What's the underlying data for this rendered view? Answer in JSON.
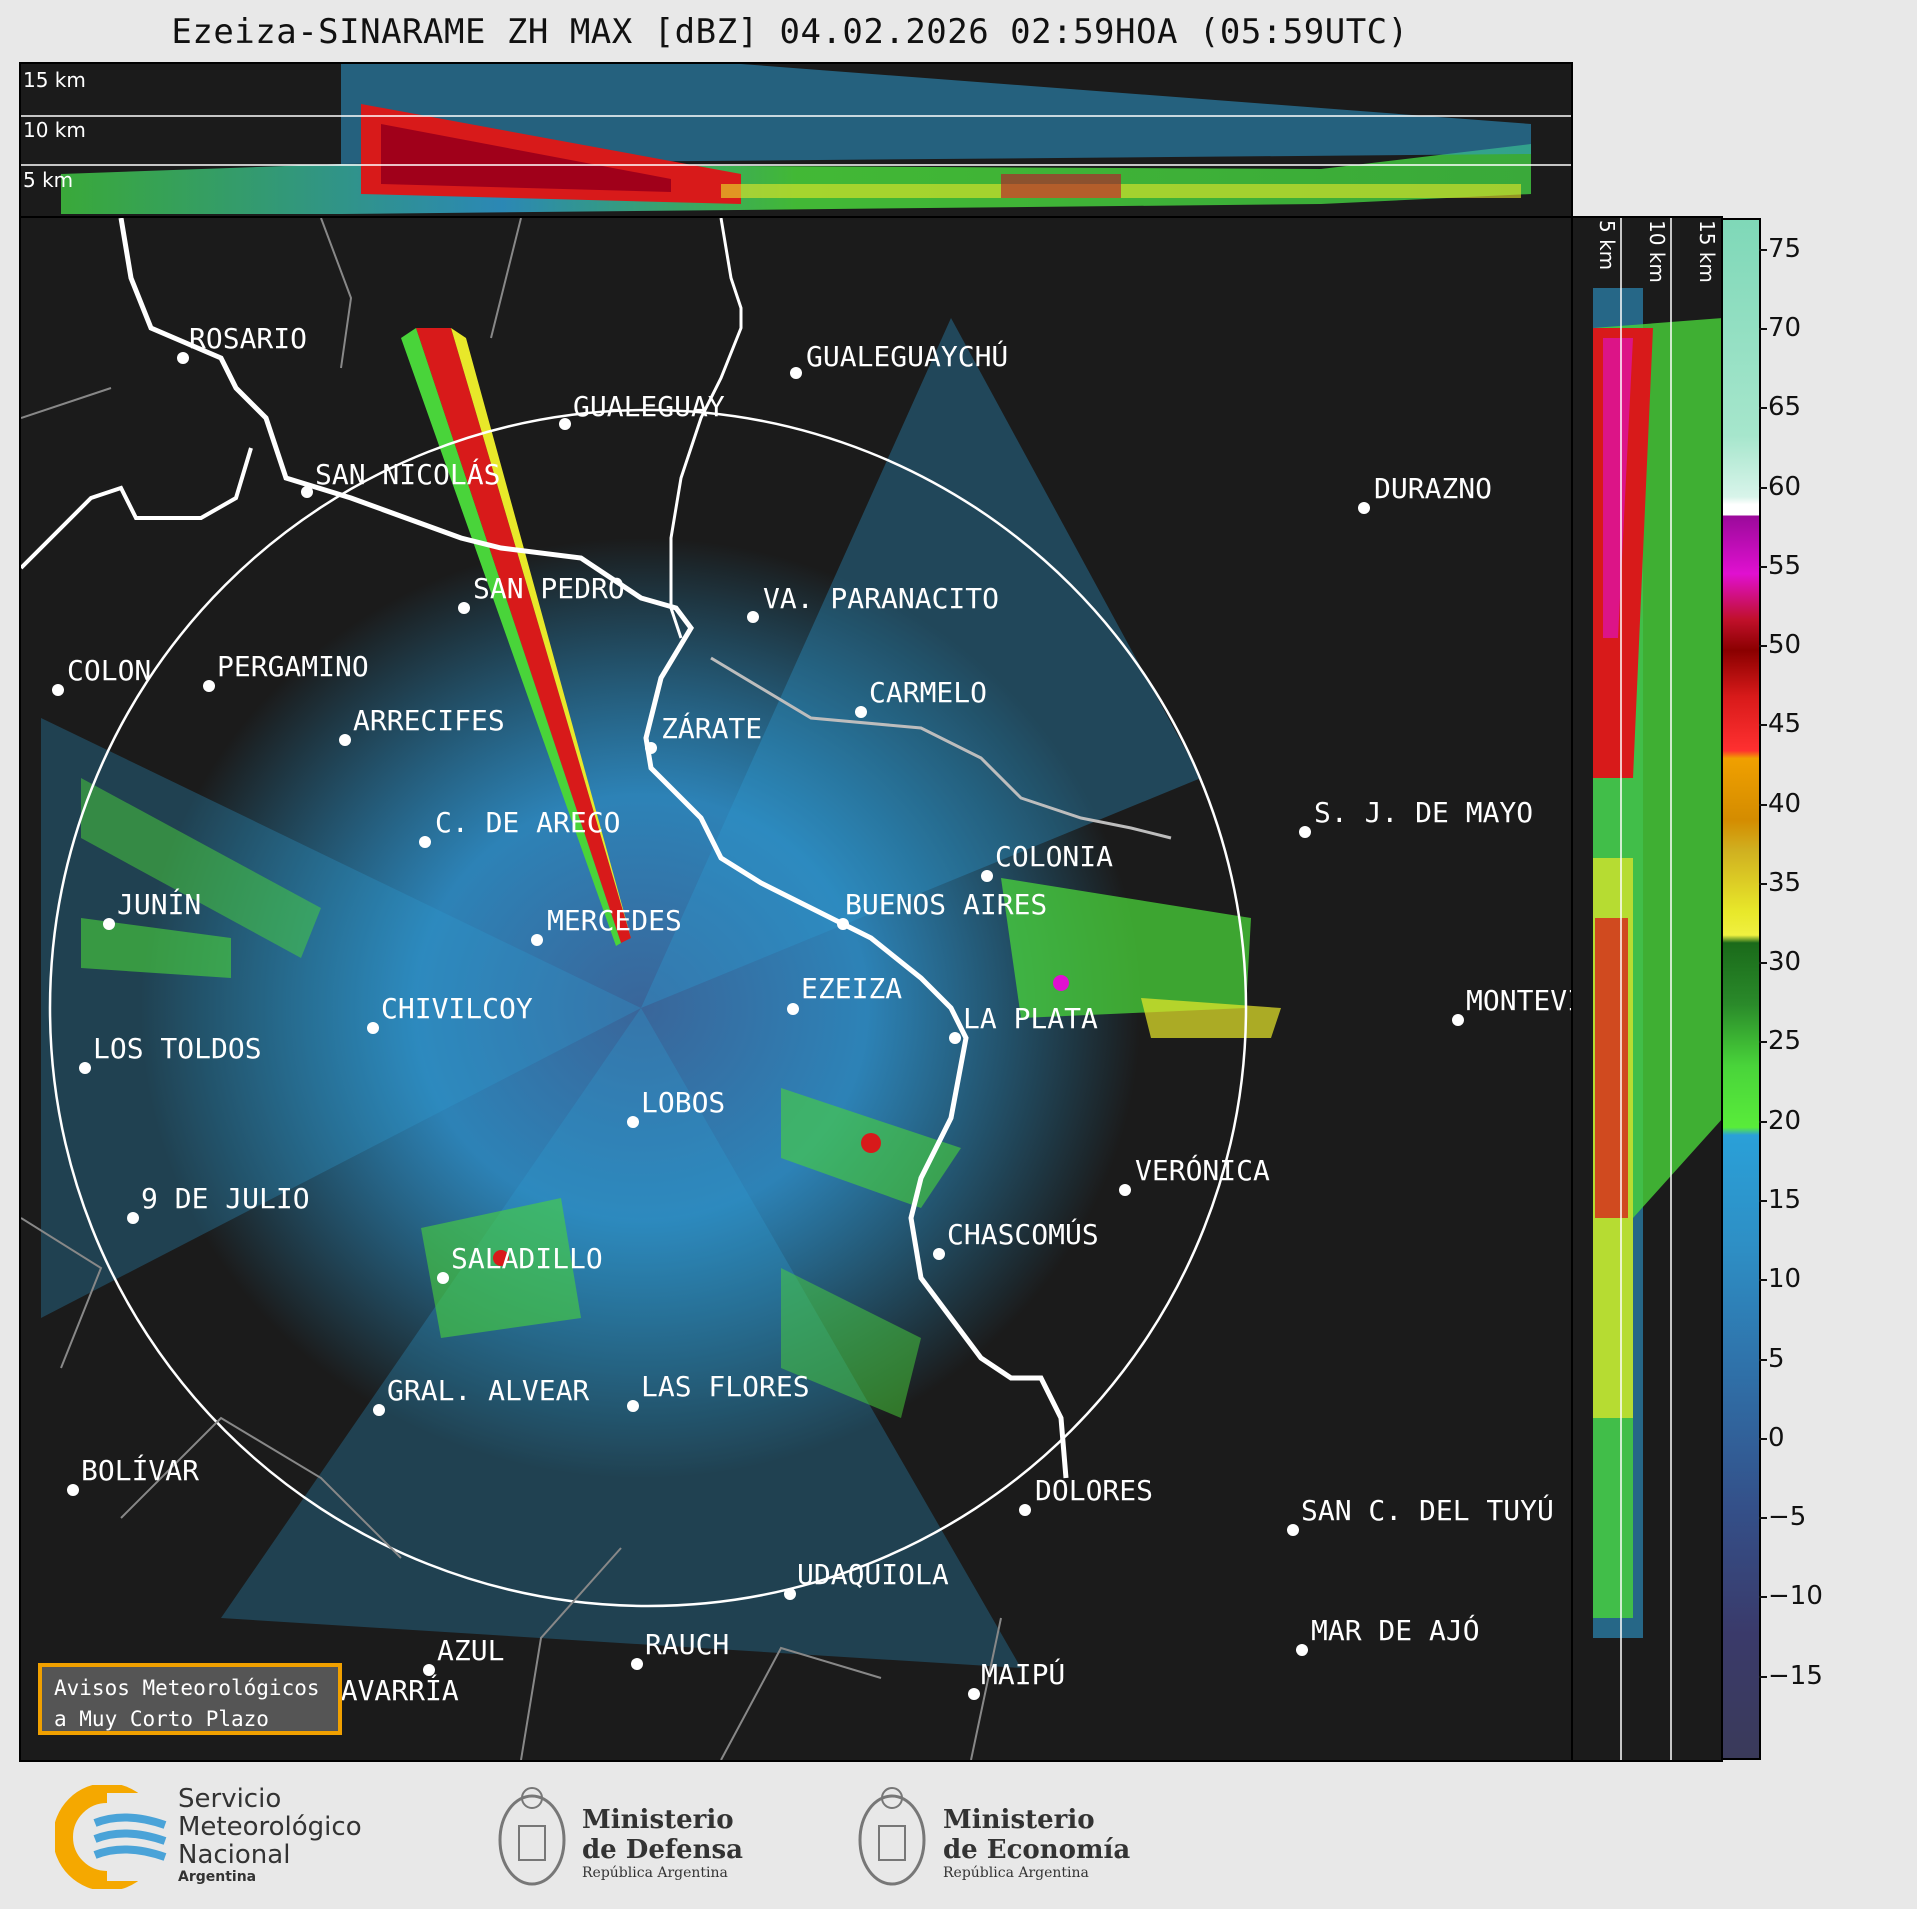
{
  "title": "Ezeiza-SINARAME ZH MAX [dBZ] 04.02.2026 02:59HOA (05:59UTC)",
  "top_panel": {
    "height_labels": [
      "15 km",
      "10 km",
      "5 km"
    ]
  },
  "side_panel": {
    "height_labels": [
      "5 km",
      "10 km",
      "15 km"
    ]
  },
  "colorbar": {
    "ticks": [
      "75",
      "70",
      "65",
      "60",
      "55",
      "50",
      "45",
      "40",
      "35",
      "30",
      "25",
      "20",
      "15",
      "10",
      "5",
      "0",
      "−5",
      "−10",
      "−15"
    ],
    "min": -20,
    "max": 77
  },
  "cities": [
    {
      "name": "ROSARIO"
    },
    {
      "name": "GUALEGUAYCHÚ"
    },
    {
      "name": "GUALEGUAY"
    },
    {
      "name": "SAN NICOLÁS"
    },
    {
      "name": "DURAZNO"
    },
    {
      "name": "SAN PEDRO"
    },
    {
      "name": "VA. PARANACITO"
    },
    {
      "name": "COLON"
    },
    {
      "name": "PERGAMINO"
    },
    {
      "name": "CARMELO"
    },
    {
      "name": "ARRECIFES"
    },
    {
      "name": "ZÁRATE"
    },
    {
      "name": "S. J. DE MAYO"
    },
    {
      "name": "C. DE ARECO"
    },
    {
      "name": "COLONIA"
    },
    {
      "name": "JUNÍN"
    },
    {
      "name": "BUENOS AIRES"
    },
    {
      "name": "MERCEDES"
    },
    {
      "name": "MONTEVIDEO"
    },
    {
      "name": "EZEIZA"
    },
    {
      "name": "CHIVILCOY"
    },
    {
      "name": "LA PLATA"
    },
    {
      "name": "LOS TOLDOS"
    },
    {
      "name": "LOBOS"
    },
    {
      "name": "VERÓNICA"
    },
    {
      "name": "9 DE JULIO"
    },
    {
      "name": "CHASCOMÚS"
    },
    {
      "name": "SALADILLO"
    },
    {
      "name": "GRAL. ALVEAR"
    },
    {
      "name": "LAS FLORES"
    },
    {
      "name": "BOLÍVAR"
    },
    {
      "name": "DOLORES"
    },
    {
      "name": "SAN C. DEL TUYÚ"
    },
    {
      "name": "UDAQUIOLA"
    },
    {
      "name": "RAUCH"
    },
    {
      "name": "AZUL"
    },
    {
      "name": "OLAVARRÍA"
    },
    {
      "name": "MAR DE AJÓ"
    },
    {
      "name": "MAIPÚ"
    }
  ],
  "badge": {
    "line1": "Avisos Meteorológicos",
    "line2": "a Muy Corto Plazo"
  },
  "logos": {
    "smn": {
      "line1": "Servicio",
      "line2": "Meteorológico",
      "line3": "Nacional",
      "line4": "Argentina"
    },
    "defensa": {
      "line1": "Ministerio",
      "line2": "de Defensa",
      "line3": "República Argentina"
    },
    "economia": {
      "line1": "Ministerio",
      "line2": "de Economía",
      "line3": "República Argentina"
    }
  }
}
